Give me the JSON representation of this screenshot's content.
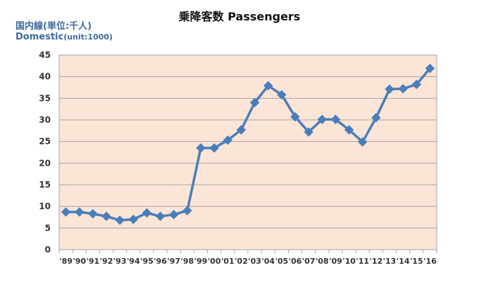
{
  "title": "乗降客数  Passengers",
  "unit_label_jp": "国内線(単位:千人)",
  "unit_label_en_main": "Domestic",
  "unit_label_en_unit": "(unit:1000)",
  "colors": {
    "plot_background": "#fbe5d6",
    "line": "#4a7ebb",
    "marker": "#4a7ebb",
    "grid": "#a6a6a6",
    "label": "#3b6a9e"
  },
  "chart_data": {
    "type": "line",
    "categories": [
      "'89",
      "'90",
      "'91",
      "'92",
      "'93",
      "'94",
      "'95",
      "'96",
      "'97",
      "'98",
      "'99",
      "'00",
      "'01",
      "'02",
      "'03",
      "'04",
      "'05",
      "'06",
      "'07",
      "'08",
      "'09",
      "'10",
      "'11",
      "'12",
      "'13",
      "'14",
      "'15",
      "'16"
    ],
    "values": [
      8.7,
      8.7,
      8.3,
      7.7,
      6.8,
      7.0,
      8.5,
      7.7,
      8.1,
      9.0,
      23.5,
      23.5,
      25.3,
      27.7,
      34.0,
      37.9,
      35.8,
      30.7,
      27.2,
      30.1,
      30.1,
      27.7,
      24.9,
      30.5,
      37.1,
      37.2,
      38.2,
      41.9
    ],
    "ylim": [
      0,
      45
    ],
    "yticks": [
      0,
      5,
      10,
      15,
      20,
      25,
      30,
      35,
      40,
      45
    ],
    "grid": true,
    "legend": "none"
  }
}
